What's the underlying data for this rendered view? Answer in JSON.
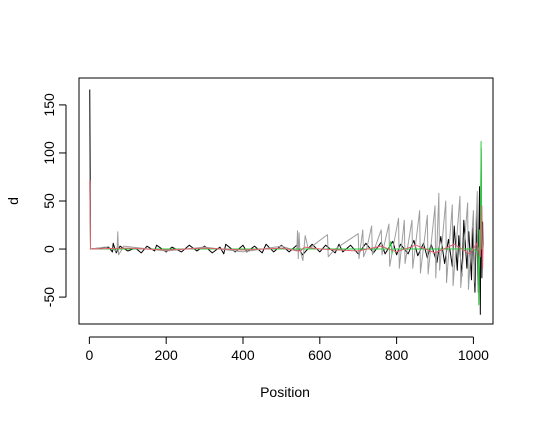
{
  "chart_data": {
    "type": "line",
    "title": "",
    "xlabel": "Position",
    "ylabel": "d",
    "xlim": [
      -27,
      1051
    ],
    "ylim": [
      -78,
      178
    ],
    "grid": false,
    "legend": "none",
    "x_ticks": [
      0,
      200,
      400,
      600,
      800,
      1000
    ],
    "x_tick_labels": [
      "0",
      "200",
      "400",
      "600",
      "800",
      "1000"
    ],
    "y_ticks": [
      -50,
      0,
      50,
      100,
      150
    ],
    "y_tick_labels": [
      "-50",
      "0",
      "50",
      "100",
      "150"
    ],
    "series": [
      {
        "color": "#000000",
        "points": [
          [
            1,
            166
          ],
          [
            3,
            0
          ],
          [
            50,
            2
          ],
          [
            60,
            -3
          ],
          [
            62,
            6
          ],
          [
            70,
            -4
          ],
          [
            80,
            3
          ],
          [
            100,
            -2
          ],
          [
            120,
            1
          ],
          [
            135,
            -4
          ],
          [
            150,
            3
          ],
          [
            170,
            -2
          ],
          [
            175,
            4
          ],
          [
            200,
            -3
          ],
          [
            215,
            2
          ],
          [
            240,
            -3
          ],
          [
            260,
            4
          ],
          [
            280,
            -2
          ],
          [
            300,
            3
          ],
          [
            320,
            -4
          ],
          [
            340,
            2
          ],
          [
            350,
            -5
          ],
          [
            355,
            5
          ],
          [
            380,
            -3
          ],
          [
            400,
            4
          ],
          [
            410,
            -3
          ],
          [
            430,
            3
          ],
          [
            450,
            -4
          ],
          [
            460,
            5
          ],
          [
            480,
            -3
          ],
          [
            500,
            4
          ],
          [
            520,
            -3
          ],
          [
            540,
            4
          ],
          [
            555,
            -6
          ],
          [
            580,
            5
          ],
          [
            600,
            -3
          ],
          [
            615,
            4
          ],
          [
            640,
            -4
          ],
          [
            650,
            5
          ],
          [
            660,
            -3
          ],
          [
            680,
            4
          ],
          [
            700,
            -5
          ],
          [
            720,
            6
          ],
          [
            740,
            -4
          ],
          [
            760,
            7
          ],
          [
            770,
            -5
          ],
          [
            790,
            8
          ],
          [
            800,
            -6
          ],
          [
            810,
            5
          ],
          [
            830,
            -5
          ],
          [
            845,
            9
          ],
          [
            855,
            -7
          ],
          [
            870,
            6
          ],
          [
            880,
            -9
          ],
          [
            890,
            5
          ],
          [
            905,
            -14
          ],
          [
            915,
            13
          ],
          [
            925,
            -15
          ],
          [
            935,
            10
          ],
          [
            945,
            -18
          ],
          [
            950,
            24
          ],
          [
            958,
            -22
          ],
          [
            962,
            14
          ],
          [
            970,
            -28
          ],
          [
            975,
            30
          ],
          [
            983,
            -20
          ],
          [
            988,
            18
          ],
          [
            995,
            -32
          ],
          [
            998,
            22
          ],
          [
            1004,
            -45
          ],
          [
            1008,
            38
          ],
          [
            1012,
            -40
          ],
          [
            1016,
            65
          ],
          [
            1018,
            -68
          ],
          [
            1020,
            105
          ],
          [
            1022,
            -30
          ],
          [
            1024,
            28
          ],
          [
            1025,
            0
          ]
        ]
      },
      {
        "color": "#9e9e9e",
        "points": [
          [
            1,
            70
          ],
          [
            3,
            0
          ],
          [
            40,
            2
          ],
          [
            72,
            -2
          ],
          [
            74,
            18
          ],
          [
            76,
            -6
          ],
          [
            90,
            3
          ],
          [
            200,
            -2
          ],
          [
            300,
            2
          ],
          [
            400,
            -3
          ],
          [
            500,
            3
          ],
          [
            540,
            -2
          ],
          [
            542,
            19
          ],
          [
            544,
            -10
          ],
          [
            546,
            17
          ],
          [
            548,
            0
          ],
          [
            556,
            -12
          ],
          [
            562,
            14
          ],
          [
            570,
            0
          ],
          [
            620,
            15
          ],
          [
            622,
            -8
          ],
          [
            640,
            0
          ],
          [
            700,
            16
          ],
          [
            702,
            -10
          ],
          [
            712,
            20
          ],
          [
            714,
            -8
          ],
          [
            722,
            0
          ],
          [
            735,
            24
          ],
          [
            737,
            -6
          ],
          [
            760,
            20
          ],
          [
            762,
            -6
          ],
          [
            780,
            26
          ],
          [
            782,
            -18
          ],
          [
            790,
            0
          ],
          [
            805,
            32
          ],
          [
            807,
            -20
          ],
          [
            820,
            30
          ],
          [
            822,
            -15
          ],
          [
            840,
            30
          ],
          [
            842,
            -20
          ],
          [
            860,
            40
          ],
          [
            862,
            -25
          ],
          [
            880,
            35
          ],
          [
            882,
            -26
          ],
          [
            900,
            45
          ],
          [
            902,
            -30
          ],
          [
            910,
            58
          ],
          [
            912,
            -22
          ],
          [
            928,
            50
          ],
          [
            930,
            -35
          ],
          [
            945,
            46
          ],
          [
            947,
            -38
          ],
          [
            965,
            55
          ],
          [
            967,
            -40
          ],
          [
            985,
            48
          ],
          [
            987,
            -42
          ],
          [
            1000,
            40
          ],
          [
            1002,
            -35
          ],
          [
            1010,
            60
          ],
          [
            1012,
            -45
          ],
          [
            1020,
            20
          ],
          [
            1025,
            0
          ]
        ]
      },
      {
        "color": "#2ecc40",
        "points": [
          [
            1,
            0
          ],
          [
            200,
            0
          ],
          [
            400,
            0
          ],
          [
            600,
            0
          ],
          [
            780,
            0
          ],
          [
            785,
            8
          ],
          [
            788,
            -5
          ],
          [
            790,
            0
          ],
          [
            860,
            0
          ],
          [
            900,
            0
          ],
          [
            1000,
            0
          ],
          [
            1012,
            -4
          ],
          [
            1014,
            -58
          ],
          [
            1016,
            20
          ],
          [
            1018,
            0
          ],
          [
            1020,
            112
          ],
          [
            1022,
            0
          ],
          [
            1025,
            0
          ]
        ]
      },
      {
        "color": "#e06070",
        "points": [
          [
            1,
            72
          ],
          [
            3,
            0
          ],
          [
            100,
            1
          ],
          [
            200,
            -1
          ],
          [
            300,
            1
          ],
          [
            400,
            -1
          ],
          [
            500,
            1
          ],
          [
            550,
            -2
          ],
          [
            560,
            2
          ],
          [
            600,
            0
          ],
          [
            700,
            -2
          ],
          [
            760,
            3
          ],
          [
            800,
            -3
          ],
          [
            850,
            4
          ],
          [
            900,
            -4
          ],
          [
            950,
            5
          ],
          [
            990,
            -5
          ],
          [
            1010,
            6
          ],
          [
            1018,
            -8
          ],
          [
            1022,
            45
          ],
          [
            1024,
            -20
          ],
          [
            1025,
            0
          ]
        ]
      }
    ]
  }
}
